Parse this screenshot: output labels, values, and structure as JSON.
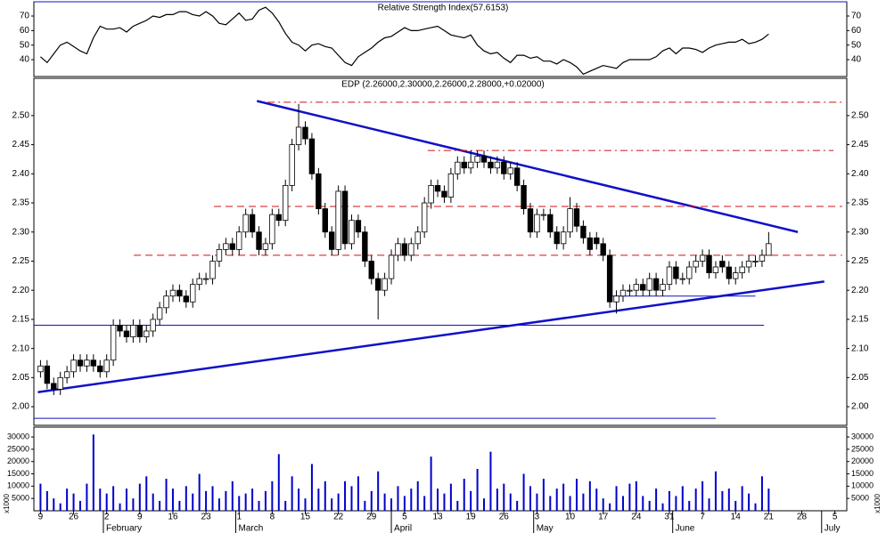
{
  "chart_data": [
    {
      "type": "line",
      "title": "Relative Strength Index(57.6153)",
      "color": "#000000",
      "xlim": [
        -1,
        121.8
      ],
      "ylim": [
        28.4,
        79.8
      ],
      "yticks": [
        40,
        50,
        60,
        70
      ],
      "values": [
        42,
        38,
        44,
        50,
        52,
        49,
        46,
        44,
        55,
        63,
        61,
        61,
        62,
        59,
        63,
        65,
        67,
        70,
        69,
        71,
        71,
        73,
        73,
        71,
        70,
        73,
        70,
        65,
        64,
        68,
        72,
        67,
        68,
        74,
        76,
        72,
        66,
        58,
        52,
        50,
        46,
        50,
        51,
        49,
        48,
        43,
        38,
        36,
        42,
        45,
        48,
        52,
        55,
        56,
        59,
        62,
        60,
        60,
        61,
        62,
        63,
        60,
        57,
        56,
        55,
        57,
        50,
        46,
        44,
        45,
        41,
        38,
        43,
        43,
        41,
        42,
        39,
        39,
        37,
        40,
        38,
        35,
        30,
        32,
        34,
        36,
        35,
        34,
        38,
        40,
        40,
        40,
        40,
        42,
        46,
        48,
        44,
        48,
        48,
        47,
        45,
        48,
        50,
        51,
        52,
        52,
        54,
        51,
        52,
        54,
        57.6
      ]
    },
    {
      "type": "candlestick",
      "title": "EDP (2.26000,2.30000,2.26000,2.28000,+0.02000)",
      "xlim": [
        -1,
        121.8
      ],
      "ylim": [
        1.968,
        2.564
      ],
      "yticks": [
        {
          "value": 2.0,
          "label": "2.00"
        },
        {
          "value": 2.05,
          "label": "2.05"
        },
        {
          "value": 2.1,
          "label": "2.10"
        },
        {
          "value": 2.15,
          "label": "2.15"
        },
        {
          "value": 2.2,
          "label": "2.20"
        },
        {
          "value": 2.25,
          "label": "2.25"
        },
        {
          "value": 2.3,
          "label": "2.30"
        },
        {
          "value": 2.35,
          "label": "2.35"
        },
        {
          "value": 2.4,
          "label": "2.40"
        },
        {
          "value": 2.45,
          "label": "2.45"
        },
        {
          "value": 2.5,
          "label": "2.50"
        }
      ],
      "up_color": "#ffffff",
      "down_color": "#000000",
      "open": [
        2.06,
        2.07,
        2.04,
        2.03,
        2.05,
        2.06,
        2.08,
        2.07,
        2.08,
        2.07,
        2.06,
        2.08,
        2.14,
        2.13,
        2.12,
        2.14,
        2.12,
        2.13,
        2.15,
        2.17,
        2.19,
        2.2,
        2.19,
        2.18,
        2.21,
        2.22,
        2.22,
        2.25,
        2.27,
        2.28,
        2.27,
        2.3,
        2.33,
        2.3,
        2.27,
        2.28,
        2.33,
        2.32,
        2.38,
        2.45,
        2.48,
        2.46,
        2.4,
        2.34,
        2.3,
        2.27,
        2.37,
        2.28,
        2.32,
        2.3,
        2.25,
        2.22,
        2.2,
        2.22,
        2.26,
        2.28,
        2.26,
        2.28,
        2.3,
        2.35,
        2.38,
        2.37,
        2.36,
        2.4,
        2.42,
        2.41,
        2.42,
        2.43,
        2.42,
        2.41,
        2.42,
        2.4,
        2.41,
        2.38,
        2.34,
        2.3,
        2.33,
        2.33,
        2.3,
        2.28,
        2.3,
        2.34,
        2.31,
        2.29,
        2.29,
        2.28,
        2.26,
        2.18,
        2.19,
        2.2,
        2.2,
        2.21,
        2.2,
        2.22,
        2.2,
        2.21,
        2.24,
        2.22,
        2.22,
        2.24,
        2.25,
        2.26,
        2.23,
        2.25,
        2.24,
        2.22,
        2.23,
        2.24,
        2.25,
        2.25,
        2.26
      ],
      "high": [
        2.08,
        2.08,
        2.05,
        2.06,
        2.07,
        2.09,
        2.09,
        2.09,
        2.09,
        2.08,
        2.09,
        2.15,
        2.15,
        2.14,
        2.15,
        2.15,
        2.14,
        2.16,
        2.18,
        2.2,
        2.21,
        2.21,
        2.2,
        2.22,
        2.23,
        2.23,
        2.26,
        2.28,
        2.29,
        2.29,
        2.31,
        2.34,
        2.34,
        2.31,
        2.29,
        2.34,
        2.34,
        2.39,
        2.46,
        2.52,
        2.49,
        2.47,
        2.41,
        2.35,
        2.31,
        2.38,
        2.38,
        2.33,
        2.33,
        2.31,
        2.26,
        2.23,
        2.23,
        2.27,
        2.29,
        2.29,
        2.29,
        2.31,
        2.36,
        2.39,
        2.39,
        2.38,
        2.41,
        2.43,
        2.43,
        2.44,
        2.44,
        2.44,
        2.43,
        2.43,
        2.43,
        2.42,
        2.42,
        2.39,
        2.35,
        2.34,
        2.34,
        2.34,
        2.31,
        2.31,
        2.36,
        2.35,
        2.32,
        2.3,
        2.3,
        2.29,
        2.27,
        2.2,
        2.21,
        2.21,
        2.22,
        2.22,
        2.23,
        2.23,
        2.22,
        2.25,
        2.25,
        2.23,
        2.25,
        2.26,
        2.27,
        2.27,
        2.25,
        2.26,
        2.25,
        2.24,
        2.25,
        2.26,
        2.26,
        2.27,
        2.3
      ],
      "low": [
        2.05,
        2.03,
        2.02,
        2.02,
        2.04,
        2.05,
        2.06,
        2.06,
        2.06,
        2.05,
        2.05,
        2.07,
        2.12,
        2.11,
        2.11,
        2.11,
        2.11,
        2.12,
        2.14,
        2.16,
        2.18,
        2.18,
        2.17,
        2.17,
        2.2,
        2.21,
        2.21,
        2.24,
        2.26,
        2.26,
        2.26,
        2.29,
        2.29,
        2.26,
        2.26,
        2.27,
        2.31,
        2.31,
        2.37,
        2.44,
        2.45,
        2.39,
        2.33,
        2.29,
        2.26,
        2.26,
        2.27,
        2.27,
        2.29,
        2.24,
        2.21,
        2.15,
        2.19,
        2.21,
        2.25,
        2.25,
        2.25,
        2.27,
        2.29,
        2.34,
        2.36,
        2.35,
        2.35,
        2.39,
        2.4,
        2.4,
        2.41,
        2.41,
        2.4,
        2.4,
        2.39,
        2.39,
        2.37,
        2.33,
        2.29,
        2.29,
        2.32,
        2.29,
        2.27,
        2.27,
        2.29,
        2.3,
        2.28,
        2.26,
        2.27,
        2.25,
        2.17,
        2.16,
        2.18,
        2.19,
        2.19,
        2.19,
        2.19,
        2.19,
        2.19,
        2.2,
        2.21,
        2.21,
        2.21,
        2.23,
        2.24,
        2.22,
        2.22,
        2.23,
        2.21,
        2.21,
        2.22,
        2.23,
        2.24,
        2.24,
        2.26
      ],
      "close": [
        2.07,
        2.04,
        2.03,
        2.05,
        2.06,
        2.08,
        2.07,
        2.08,
        2.07,
        2.06,
        2.08,
        2.14,
        2.13,
        2.12,
        2.14,
        2.12,
        2.13,
        2.15,
        2.17,
        2.19,
        2.2,
        2.19,
        2.18,
        2.21,
        2.22,
        2.22,
        2.25,
        2.27,
        2.28,
        2.27,
        2.3,
        2.33,
        2.3,
        2.27,
        2.28,
        2.33,
        2.32,
        2.38,
        2.45,
        2.48,
        2.46,
        2.4,
        2.34,
        2.3,
        2.27,
        2.37,
        2.28,
        2.32,
        2.3,
        2.25,
        2.22,
        2.2,
        2.22,
        2.26,
        2.28,
        2.26,
        2.28,
        2.3,
        2.35,
        2.38,
        2.37,
        2.36,
        2.4,
        2.42,
        2.41,
        2.42,
        2.43,
        2.42,
        2.41,
        2.42,
        2.4,
        2.41,
        2.38,
        2.34,
        2.3,
        2.33,
        2.33,
        2.3,
        2.28,
        2.3,
        2.34,
        2.31,
        2.29,
        2.27,
        2.28,
        2.26,
        2.18,
        2.19,
        2.2,
        2.2,
        2.21,
        2.2,
        2.22,
        2.2,
        2.21,
        2.24,
        2.22,
        2.22,
        2.24,
        2.25,
        2.26,
        2.23,
        2.24,
        2.24,
        2.22,
        2.23,
        2.24,
        2.25,
        2.25,
        2.26,
        2.28
      ],
      "lines": [
        {
          "from": [
            32.7,
            2.525
          ],
          "to": [
            114.4,
            2.3
          ],
          "color": "#1010c8",
          "style": "solid",
          "width": 2.5
        },
        {
          "from": [
            -0.4,
            2.025
          ],
          "to": [
            118.4,
            2.215
          ],
          "color": "#1010c8",
          "style": "solid",
          "width": 2.5
        },
        {
          "from": [
            -1,
            2.14
          ],
          "to": [
            109.3,
            2.14
          ],
          "color": "#1010c8",
          "style": "solid",
          "width": 1
        },
        {
          "from": [
            -1,
            1.98
          ],
          "to": [
            102,
            1.98
          ],
          "color": "#1010c8",
          "style": "solid",
          "width": 1
        },
        {
          "from": [
            86.1,
            2.19
          ],
          "to": [
            108,
            2.19
          ],
          "color": "#1010c8",
          "style": "solid",
          "width": 1
        },
        {
          "from": [
            34.3,
            2.523
          ],
          "to": [
            121.1,
            2.523
          ],
          "color": "#d01010",
          "style": "dashdot",
          "width": 1
        },
        {
          "from": [
            58.5,
            2.44
          ],
          "to": [
            119.8,
            2.44
          ],
          "color": "#d01010",
          "style": "dashdot",
          "width": 1
        },
        {
          "from": [
            26.2,
            2.344
          ],
          "to": [
            121.1,
            2.344
          ],
          "color": "#d01010",
          "style": "dashed",
          "width": 1
        },
        {
          "from": [
            14.1,
            2.26
          ],
          "to": [
            121.1,
            2.26
          ],
          "color": "#d01010",
          "style": "dashed",
          "width": 1
        }
      ]
    },
    {
      "type": "bar",
      "y_label": "x1000",
      "color": "#0000cc",
      "xlim": [
        -1,
        121.8
      ],
      "ylim": [
        0,
        34000
      ],
      "yticks": [
        5000,
        10000,
        15000,
        20000,
        25000,
        30000
      ],
      "values": [
        11000,
        8000,
        5000,
        3000,
        9000,
        7000,
        4000,
        11000,
        31000,
        9000,
        7000,
        10000,
        3000,
        9000,
        5000,
        11000,
        14000,
        7000,
        4000,
        13000,
        9000,
        4000,
        10000,
        7000,
        15000,
        8000,
        10000,
        5000,
        8000,
        12000,
        6000,
        7000,
        9000,
        4000,
        8000,
        12000,
        23000,
        4000,
        14000,
        9000,
        5000,
        19000,
        9000,
        12000,
        5000,
        7000,
        12000,
        10000,
        14000,
        4000,
        8000,
        16000,
        7000,
        5000,
        10000,
        6000,
        9000,
        12000,
        6000,
        22000,
        9000,
        7000,
        11000,
        4000,
        13000,
        8000,
        17000,
        5000,
        24000,
        9000,
        11000,
        7000,
        4000,
        15000,
        10000,
        7000,
        13000,
        6000,
        9000,
        11000,
        6000,
        13000,
        7000,
        12000,
        9000,
        5000,
        3000,
        10000,
        6000,
        11000,
        12000,
        6000,
        4000,
        9000,
        3000,
        8000,
        6000,
        10000,
        4000,
        9000,
        12000,
        5000,
        16000,
        8000,
        9000,
        4000,
        10000,
        7000,
        3000,
        14000,
        9000
      ],
      "xticks": [
        {
          "value": 0,
          "label": "9"
        },
        {
          "value": 5,
          "label": "26"
        },
        {
          "value": 10,
          "label": "2"
        },
        {
          "value": 15,
          "label": "9"
        },
        {
          "value": 20,
          "label": "16"
        },
        {
          "value": 25,
          "label": "23"
        },
        {
          "value": 30,
          "label": "1"
        },
        {
          "value": 35,
          "label": "8"
        },
        {
          "value": 40,
          "label": "15"
        },
        {
          "value": 45,
          "label": "22"
        },
        {
          "value": 50,
          "label": "29"
        },
        {
          "value": 55,
          "label": "5"
        },
        {
          "value": 60,
          "label": "13"
        },
        {
          "value": 65,
          "label": "19"
        },
        {
          "value": 70,
          "label": "26"
        },
        {
          "value": 75,
          "label": "3"
        },
        {
          "value": 80,
          "label": "10"
        },
        {
          "value": 85,
          "label": "17"
        },
        {
          "value": 90,
          "label": "24"
        },
        {
          "value": 95,
          "label": "31"
        },
        {
          "value": 100,
          "label": "7"
        },
        {
          "value": 105,
          "label": "14"
        },
        {
          "value": 110,
          "label": "21"
        },
        {
          "value": 115,
          "label": "28"
        },
        {
          "value": 120,
          "label": "5"
        }
      ],
      "month_ticks": [
        {
          "value": 9.5,
          "label": "February"
        },
        {
          "value": 29.5,
          "label": "March"
        },
        {
          "value": 53,
          "label": "April"
        },
        {
          "value": 74.5,
          "label": "May"
        },
        {
          "value": 95.5,
          "label": "June"
        },
        {
          "value": 118,
          "label": "July"
        }
      ]
    }
  ]
}
